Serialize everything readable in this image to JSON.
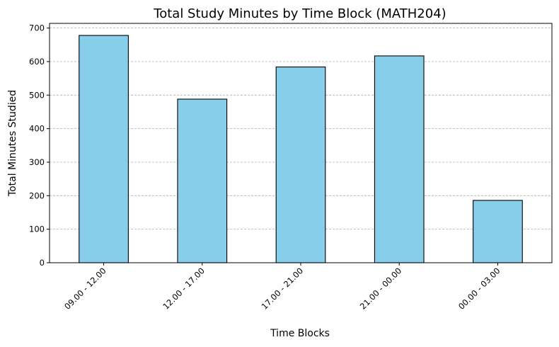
{
  "chart_data": {
    "type": "bar",
    "title": "Total Study Minutes by Time Block (MATH204)",
    "xlabel": "Time Blocks",
    "ylabel": "Total Minutes Studied",
    "categories": [
      "09.00 - 12.00",
      "12.00 - 17.00",
      "17.00 - 21.00",
      "21.00 - 00.00",
      "00.00 - 03.00"
    ],
    "values": [
      678,
      488,
      584,
      617,
      186
    ],
    "ylim": [
      0,
      714
    ],
    "yticks": [
      0,
      100,
      200,
      300,
      400,
      500,
      600,
      700
    ],
    "grid": "horizontal dashed",
    "colors": {
      "bar": "#87ceeb",
      "edge": "#000000",
      "grid": "#b0b0b0"
    }
  }
}
